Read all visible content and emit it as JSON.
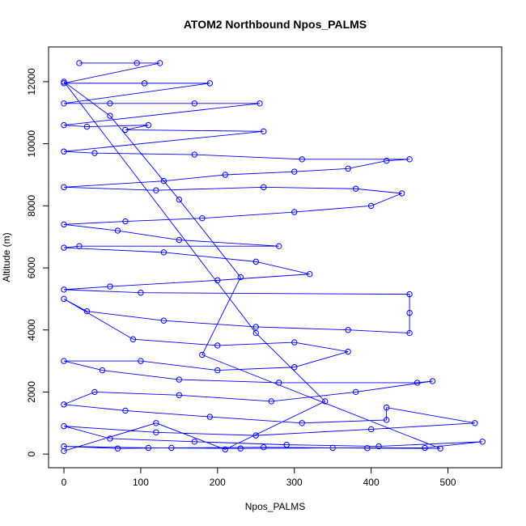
{
  "chart_data": {
    "type": "line",
    "title": "ATOM2 Northbound Npos_PALMS",
    "x_label": "Npos_PALMS",
    "y_label": "Altitude (m)",
    "color": "#0000ff",
    "markers": true,
    "x": [
      20,
      95,
      125,
      0,
      105,
      190,
      0,
      60,
      170,
      255,
      0,
      30,
      110,
      80,
      260,
      0,
      40,
      170,
      310,
      450,
      420,
      370,
      300,
      210,
      130,
      0,
      120,
      260,
      380,
      440,
      400,
      300,
      180,
      80,
      0,
      70,
      150,
      280,
      20,
      0,
      130,
      250,
      320,
      200,
      60,
      0,
      100,
      450,
      450,
      450,
      370,
      250,
      130,
      30,
      0,
      90,
      200,
      300,
      370,
      300,
      200,
      100,
      0,
      50,
      150,
      280,
      460,
      480,
      380,
      270,
      150,
      40,
      0,
      80,
      190,
      310,
      420,
      420,
      535,
      400,
      250,
      120,
      0,
      60,
      170,
      290,
      410,
      545,
      470,
      350,
      230,
      110,
      0,
      70,
      140,
      260,
      395,
      490,
      180,
      230,
      150,
      60,
      0,
      250,
      340,
      210,
      120,
      0
    ],
    "values": [
      12600,
      12600,
      12600,
      11950,
      11950,
      11950,
      11300,
      11300,
      11300,
      11300,
      10600,
      10550,
      10600,
      10450,
      10400,
      9750,
      9700,
      9650,
      9500,
      9500,
      9450,
      9200,
      9100,
      9000,
      8800,
      8600,
      8500,
      8600,
      8550,
      8400,
      8000,
      7800,
      7600,
      7500,
      7400,
      7200,
      6900,
      6700,
      6700,
      6650,
      6500,
      6200,
      5800,
      5600,
      5400,
      5300,
      5200,
      5150,
      4550,
      3900,
      4000,
      4100,
      4300,
      4600,
      5000,
      3700,
      3500,
      3600,
      3300,
      2800,
      2700,
      3000,
      3000,
      2700,
      2400,
      2300,
      2300,
      2350,
      2000,
      1700,
      1900,
      2000,
      1600,
      1400,
      1200,
      1000,
      1100,
      1500,
      1000,
      800,
      600,
      700,
      900,
      500,
      400,
      300,
      250,
      400,
      200,
      200,
      180,
      200,
      250,
      180,
      200,
      220,
      190,
      180,
      3200,
      5700,
      8200,
      10900,
      12000,
      3900,
      1700,
      150,
      1000,
      100
    ],
    "xlim": [
      -20,
      570
    ],
    "ylim": [
      -440,
      13120
    ],
    "xticks": [
      0,
      100,
      200,
      300,
      400,
      500
    ],
    "yticks": [
      0,
      2000,
      4000,
      6000,
      8000,
      10000,
      12000
    ]
  }
}
